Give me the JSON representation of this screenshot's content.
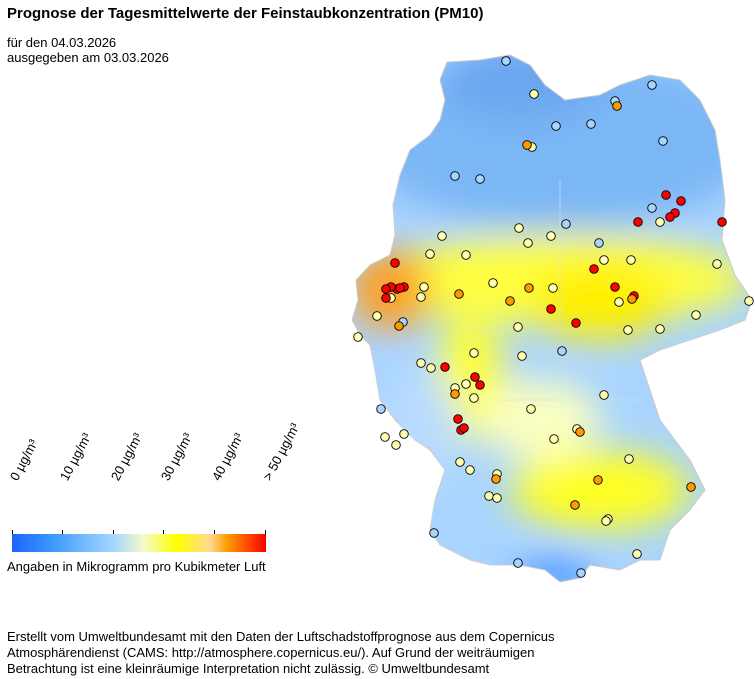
{
  "title": "Prognose der Tagesmittelwerte der Feinstaubkonzentration (PM10)",
  "date_line": "für den 04.03.2026",
  "issued_line": "ausgegeben am 03.03.2026",
  "legend": {
    "ticks": [
      "0  µg/m³",
      "10  µg/m³",
      "20  µg/m³",
      "30  µg/m³",
      "40  µg/m³",
      "> 50  µg/m³"
    ],
    "unit_note": "Angaben in Mikrogramm pro Kubikmeter Luft",
    "colors": [
      "#1d63ff",
      "#3a97ff",
      "#a6d6ff",
      "#f6fbc8",
      "#ffff00",
      "#ff9a00",
      "#ff0000"
    ]
  },
  "footer": {
    "line1": "Erstellt vom Umweltbundesamt mit den Daten der Luftschadstoffprognose aus dem Copernicus",
    "line2": "Atmosphärendienst (CAMS: http://atmosphere.copernicus.eu/). Auf Grund der weiträumigen",
    "line3": "Betrachtung ist eine kleinräumige Interpretation nicht zulässig. © Umweltbundesamt"
  }
}
